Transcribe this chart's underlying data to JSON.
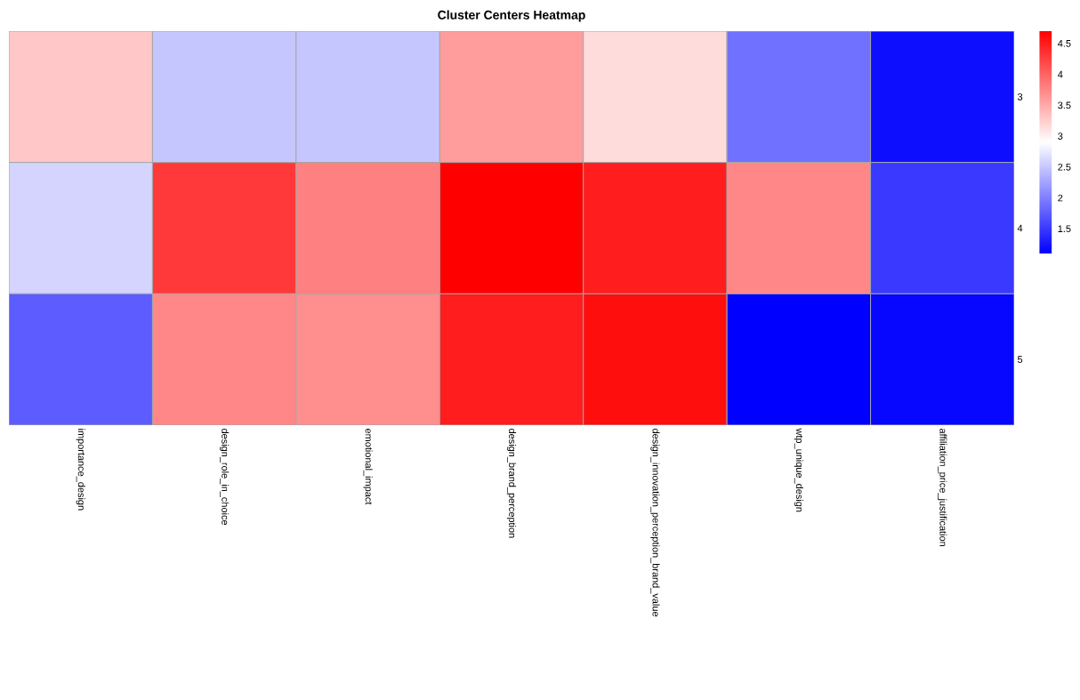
{
  "chart_data": {
    "type": "heatmap",
    "title": "Cluster Centers Heatmap",
    "categories": [
      "importance_design",
      "design_role_in_choice",
      "emotional_impact",
      "design_brand_perception",
      "design_innovation_perception_brand_value",
      "wtp_unique_design",
      "affiliation_price_justification"
    ],
    "y_categories": [
      "3",
      "4",
      "5"
    ],
    "cells": [
      [
        3.3,
        2.5,
        2.5,
        3.6,
        3.15,
        1.9,
        1.2
      ],
      [
        2.6,
        4.3,
        3.8,
        4.7,
        4.5,
        3.75,
        1.5
      ],
      [
        1.75,
        3.75,
        3.7,
        4.5,
        4.6,
        1.1,
        1.15
      ]
    ],
    "clim": [
      1.1,
      4.7
    ],
    "cticks": [
      1.5,
      2,
      2.5,
      3,
      3.5,
      4,
      4.5
    ]
  }
}
